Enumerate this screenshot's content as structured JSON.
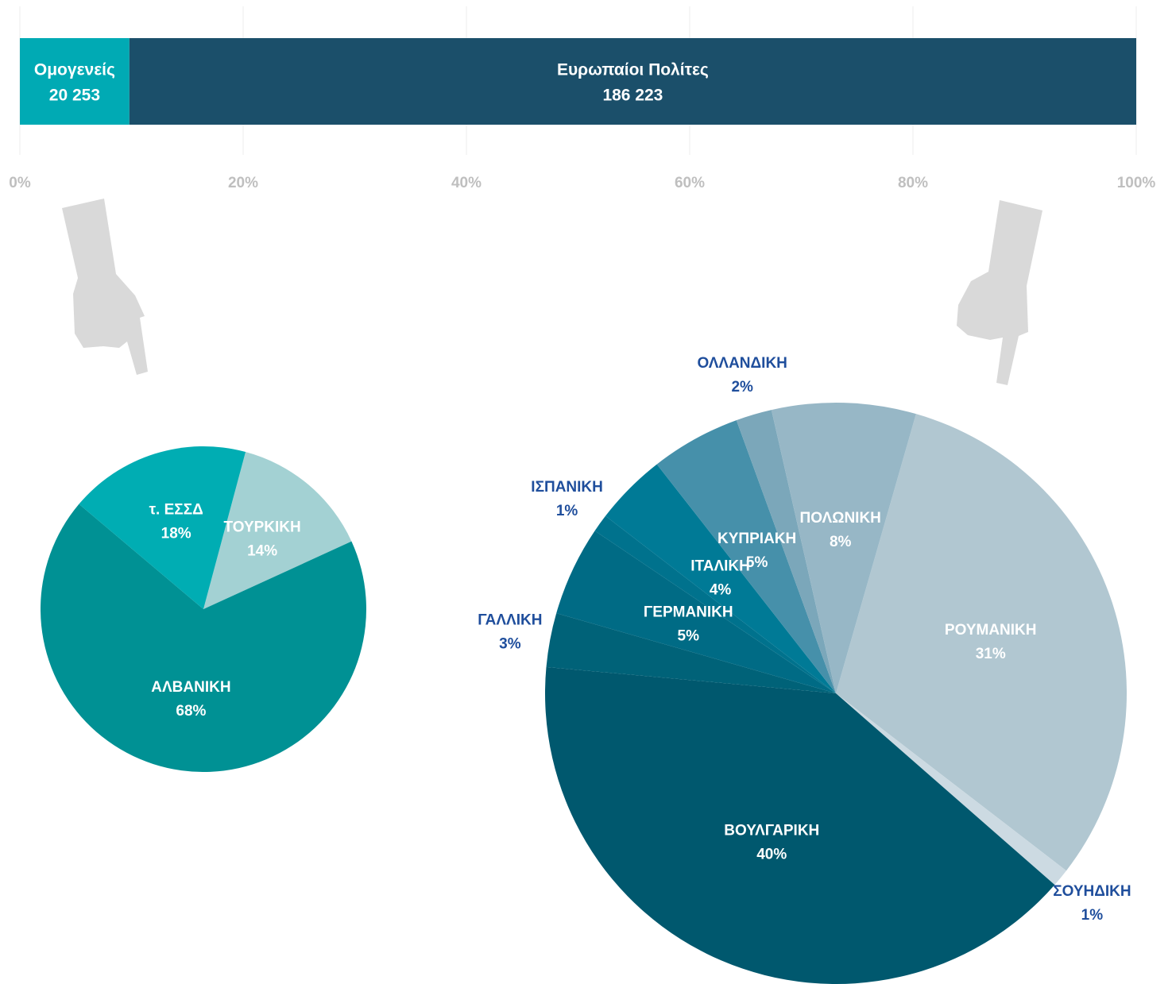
{
  "chart_data": [
    {
      "type": "bar",
      "orientation": "horizontal",
      "stacked": "percent",
      "series": [
        {
          "name": "Ομογενείς",
          "color": "#00aab4",
          "values": [
            20253
          ],
          "value_labels": [
            "20 253"
          ]
        },
        {
          "name": "Ευρωπαίοι Πολίτες",
          "color": "#1b4f6a",
          "values": [
            186223
          ],
          "value_labels": [
            "186 223"
          ]
        }
      ],
      "xlim": [
        0,
        100
      ],
      "xticks": [
        {
          "value": 0,
          "label": "0%"
        },
        {
          "value": 20,
          "label": "20%"
        },
        {
          "value": 40,
          "label": "40%"
        },
        {
          "value": 60,
          "label": "60%"
        },
        {
          "value": 80,
          "label": "80%"
        },
        {
          "value": 100,
          "label": "100%"
        }
      ],
      "grid": true
    },
    {
      "type": "pie",
      "categories": [
        "ΤΟΥΡΚΙΚΗ",
        "ΑΛΒΑΝΙΚΗ",
        "τ. ΕΣΣΔ"
      ],
      "values": [
        14,
        68,
        18
      ],
      "value_labels": [
        "14%",
        "68%",
        "18%"
      ],
      "colors": [
        "#a3d1d3",
        "#009194",
        "#00adb3"
      ]
    },
    {
      "type": "pie",
      "categories": [
        "ΡΟΥΜΑΝΙΚΗ",
        "ΣΟΥΗΔΙΚΗ",
        "ΒΟΥΛΓΑΡΙΚΗ",
        "ΓΑΛΛΙΚΗ",
        "ΓΕΡΜΑΝΙΚΗ",
        "ΙΣΠΑΝΙΚΗ",
        "ΙΤΑΛΙΚΗ",
        "ΚΥΠΡΙΑΚΗ",
        "ΟΛΛΑΝΔΙΚΗ",
        "ΠΟΛΩΝΙΚΗ"
      ],
      "values": [
        31,
        1,
        40,
        3,
        5,
        1,
        4,
        5,
        2,
        8
      ],
      "value_labels": [
        "31%",
        "1%",
        "40%",
        "3%",
        "5%",
        "1%",
        "4%",
        "5%",
        "2%",
        "8%"
      ],
      "colors": [
        "#b1c7d1",
        "#ccdae2",
        "#00586e",
        "#006278",
        "#006b85",
        "#00728d",
        "#007a96",
        "#4690aa",
        "#7ba7ba",
        "#97b7c6"
      ]
    }
  ]
}
